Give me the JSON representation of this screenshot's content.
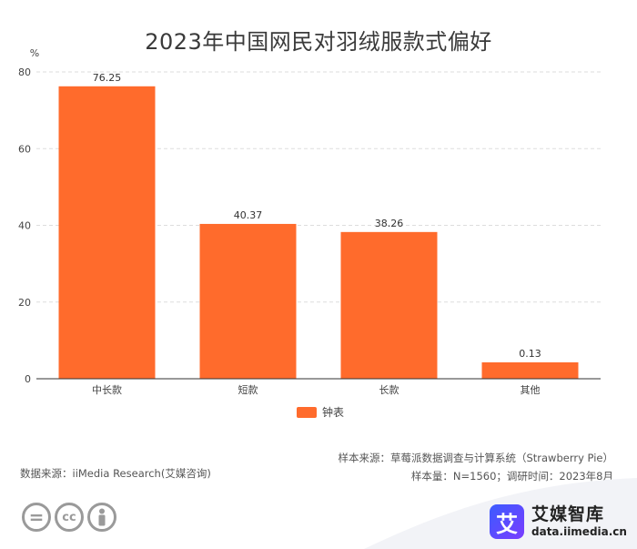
{
  "title": "2023年中国网民对羽绒服款式偏好",
  "chart_data": {
    "type": "bar",
    "categories": [
      "中长款",
      "短款",
      "长款",
      "其他"
    ],
    "series": [
      {
        "name": "钟表",
        "values": [
          76.25,
          40.37,
          38.26,
          0.13
        ]
      }
    ],
    "ylabel": "%",
    "yticks": [
      0,
      20,
      40,
      60,
      80
    ],
    "ylim": [
      0,
      80
    ],
    "grid": true,
    "legend": "bottom",
    "color": "#ff6b2c"
  },
  "legend_label": "钟表",
  "footer": {
    "sample_source": "样本来源：草莓派数据调查与计算系统（Strawberry Pie）",
    "sample_info": "样本量：N=1560；调研时间：2023年8月",
    "data_source": "数据来源：iiMedia Research(艾媒咨询)"
  },
  "brand": {
    "logo_char": "艾",
    "name": "艾媒智库",
    "url": "data.iimedia.cn"
  },
  "license_icons": [
    "equal-icon",
    "cc-icon",
    "person-icon"
  ],
  "license_glyphs": [
    "=",
    "cc",
    ""
  ]
}
